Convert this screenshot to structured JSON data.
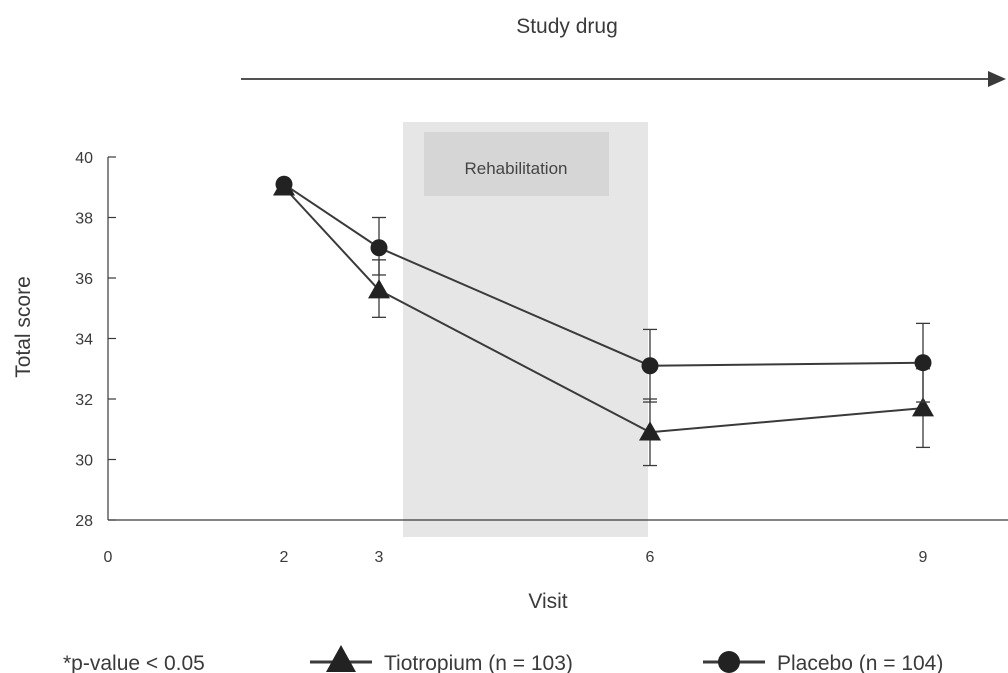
{
  "chart_data": {
    "type": "line",
    "top_label": "Study drug",
    "xlabel": "Visit",
    "ylabel": "Total score",
    "x_ticks": [
      0,
      2,
      3,
      6,
      9
    ],
    "y_ticks": [
      28,
      30,
      32,
      34,
      36,
      38,
      40
    ],
    "ylim": [
      28,
      40
    ],
    "shaded_region": {
      "label": "Rehabilitation",
      "x_from": 3.2,
      "x_to": 5.9
    },
    "series": [
      {
        "name": "Tiotropium (n = 103)",
        "marker": "triangle",
        "x": [
          2,
          3,
          6,
          9
        ],
        "y": [
          39.0,
          35.6,
          30.9,
          31.7
        ],
        "err_low": [
          null,
          34.7,
          29.8,
          30.4
        ],
        "err_high": [
          null,
          36.6,
          32.0,
          33.0
        ]
      },
      {
        "name": "Placebo (n = 104)",
        "marker": "circle",
        "x": [
          2,
          3,
          6,
          9
        ],
        "y": [
          39.1,
          37.0,
          33.1,
          33.2
        ],
        "err_low": [
          null,
          36.1,
          31.9,
          31.9
        ],
        "err_high": [
          null,
          38.0,
          34.3,
          34.5
        ]
      }
    ],
    "note": "*p-value < 0.05",
    "colors": {
      "line": "#3a3a3a",
      "marker": "#222222",
      "band": "#e6e6e6",
      "band_label_box": "#d6d6d6"
    }
  }
}
